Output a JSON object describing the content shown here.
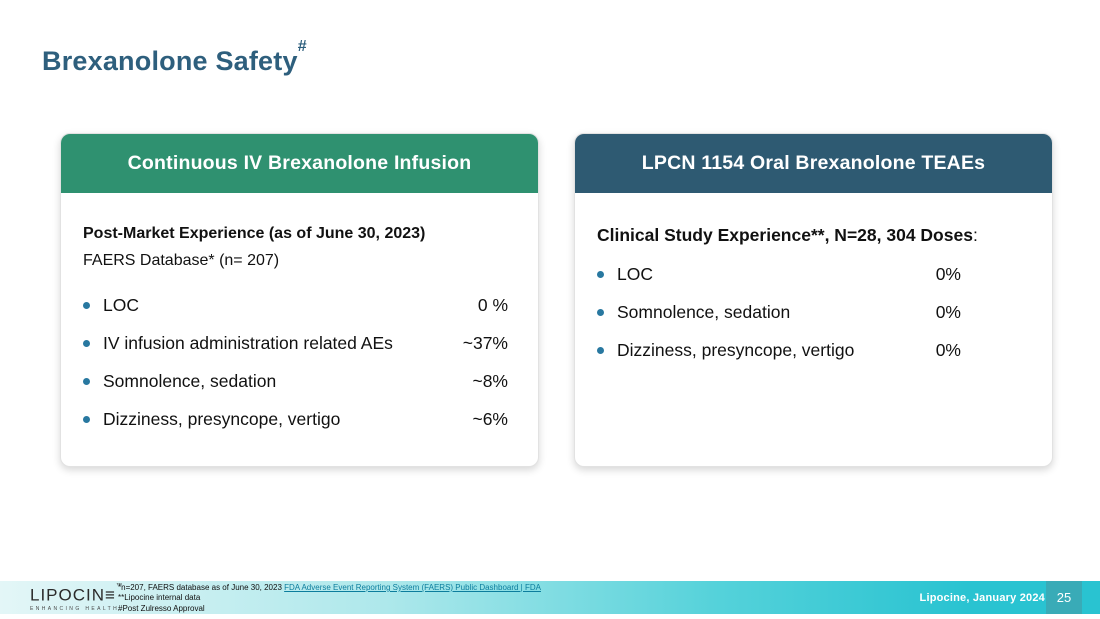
{
  "slide": {
    "title": "Brexanolone Safety",
    "title_superscript": "#"
  },
  "cards": [
    {
      "header": "Continuous IV Brexanolone Infusion",
      "intro_bold": "Post-Market Experience (as of June 30, 2023)",
      "intro_regular": "FAERS Database* (n= 207)",
      "rows": [
        {
          "label": "LOC",
          "value": "0 %"
        },
        {
          "label": "IV infusion administration related AEs",
          "value": "~37%"
        },
        {
          "label": "Somnolence, sedation",
          "value": "~8%"
        },
        {
          "label": "Dizziness, presyncope, vertigo",
          "value": "~6%"
        }
      ]
    },
    {
      "header": "LPCN 1154 Oral Brexanolone TEAEs",
      "intro_bold": "Clinical Study Experience**, N=28, 304 Doses",
      "intro_suffix": ":",
      "rows": [
        {
          "label": "LOC",
          "value": "0%"
        },
        {
          "label": "Somnolence, sedation",
          "value": "0%"
        },
        {
          "label": "Dizziness, presyncope, vertigo",
          "value": "0%"
        }
      ]
    }
  ],
  "footer": {
    "logo_text": "LIPOCIN",
    "logo_e": "≡",
    "logo_tm": "™",
    "logo_tagline": "ENHANCING HEALTH",
    "footnote1_prefix": "*n=207, FAERS database as of June 30, 2023 ",
    "footnote1_link": "FDA Adverse Event Reporting System (FAERS) Public Dashboard | FDA",
    "footnote2": "**Lipocine internal data",
    "footnote3": "#Post Zulresso Approval",
    "credit": "Lipocine, January 2024",
    "page_number": "25"
  },
  "colors": {
    "title_blue": "#2e5f7d",
    "card_green": "#2f9170",
    "card_navy": "#2e5a72",
    "bullet_teal": "#2878a0",
    "link_teal": "#0c7d9d",
    "footer_teal": "#29c3d1",
    "footer_light": "#e3f6f7",
    "text_dark": "#111111"
  }
}
